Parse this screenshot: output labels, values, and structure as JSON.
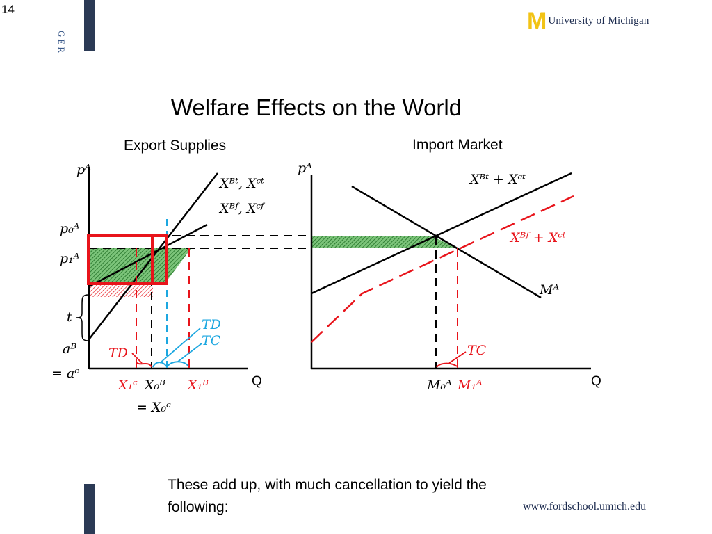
{
  "slide_number": "14",
  "sidebar_text": "GER",
  "logo": {
    "mark": "M",
    "text": "UNIVERSITY OF MICHIGAN",
    "text_display": "University of Michigan"
  },
  "title": "Welfare Effects on the World",
  "left_panel": {
    "heading": "Export Supplies",
    "y_axis": "pᴬ",
    "x_axis": "Q",
    "price_labels": {
      "p0": "p₀ᴬ",
      "p1": "p₁ᴬ",
      "t": "t",
      "aB": "aᴮ",
      "aC": "= aᶜ"
    },
    "curves": {
      "tariff": "Xᴮᵗ, Xᶜᵗ",
      "free": "Xᴮᶠ, Xᶜᶠ"
    },
    "quantity_labels": {
      "X1C": "X₁ᶜ",
      "X0B": "X₀ᴮ",
      "X0C": "= X₀ᶜ",
      "X1B": "X₁ᴮ"
    },
    "annotations": {
      "TD_blue": "TD",
      "TC_blue": "TC",
      "TD_red": "TD"
    }
  },
  "right_panel": {
    "heading": "Import Market",
    "y_axis": "pᴬ",
    "x_axis": "Q",
    "curves": {
      "tariff_sum": "Xᴮᵗ + Xᶜᵗ",
      "free_sum": "Xᴮᶠ + Xᶜᵗ",
      "demand": "Mᴬ"
    },
    "quantity_labels": {
      "M0": "M₀ᴬ",
      "M1": "M₁ᴬ"
    },
    "annotations": {
      "TC_red": "TC"
    }
  },
  "colors": {
    "red": "#e8141b",
    "blue": "#1ca7e0",
    "green": "#2f9a35",
    "navy": "#1b2a4e",
    "gold": "#f2c316"
  },
  "bottom_text": "These add up, with much cancellation to yield the following:",
  "url": "www.fordschool.umich.edu"
}
